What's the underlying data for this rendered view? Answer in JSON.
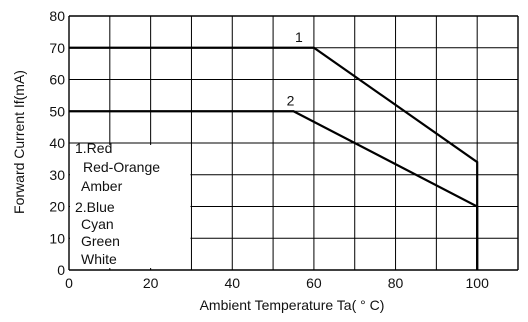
{
  "chart_data": {
    "type": "line",
    "xlabel": "Ambient Temperature Ta( ° C)",
    "ylabel": "Forward Current If(mA)",
    "xlim": [
      0,
      110
    ],
    "ylim": [
      0,
      80
    ],
    "x_ticks": [
      0,
      20,
      40,
      60,
      80,
      100
    ],
    "y_ticks": [
      0,
      10,
      20,
      30,
      40,
      50,
      60,
      70,
      80
    ],
    "grid": true,
    "series": [
      {
        "name": "1",
        "x": [
          0,
          60,
          100,
          100
        ],
        "y": [
          70,
          70,
          34,
          0
        ]
      },
      {
        "name": "2",
        "x": [
          0,
          55,
          100,
          100
        ],
        "y": [
          50,
          50,
          20,
          0
        ]
      }
    ],
    "legend": {
      "placement": "bottom-left",
      "lines": [
        "1.Red",
        "Red-Orange",
        "Amber",
        "2.Blue",
        "Cyan",
        "Green",
        "White"
      ]
    }
  }
}
